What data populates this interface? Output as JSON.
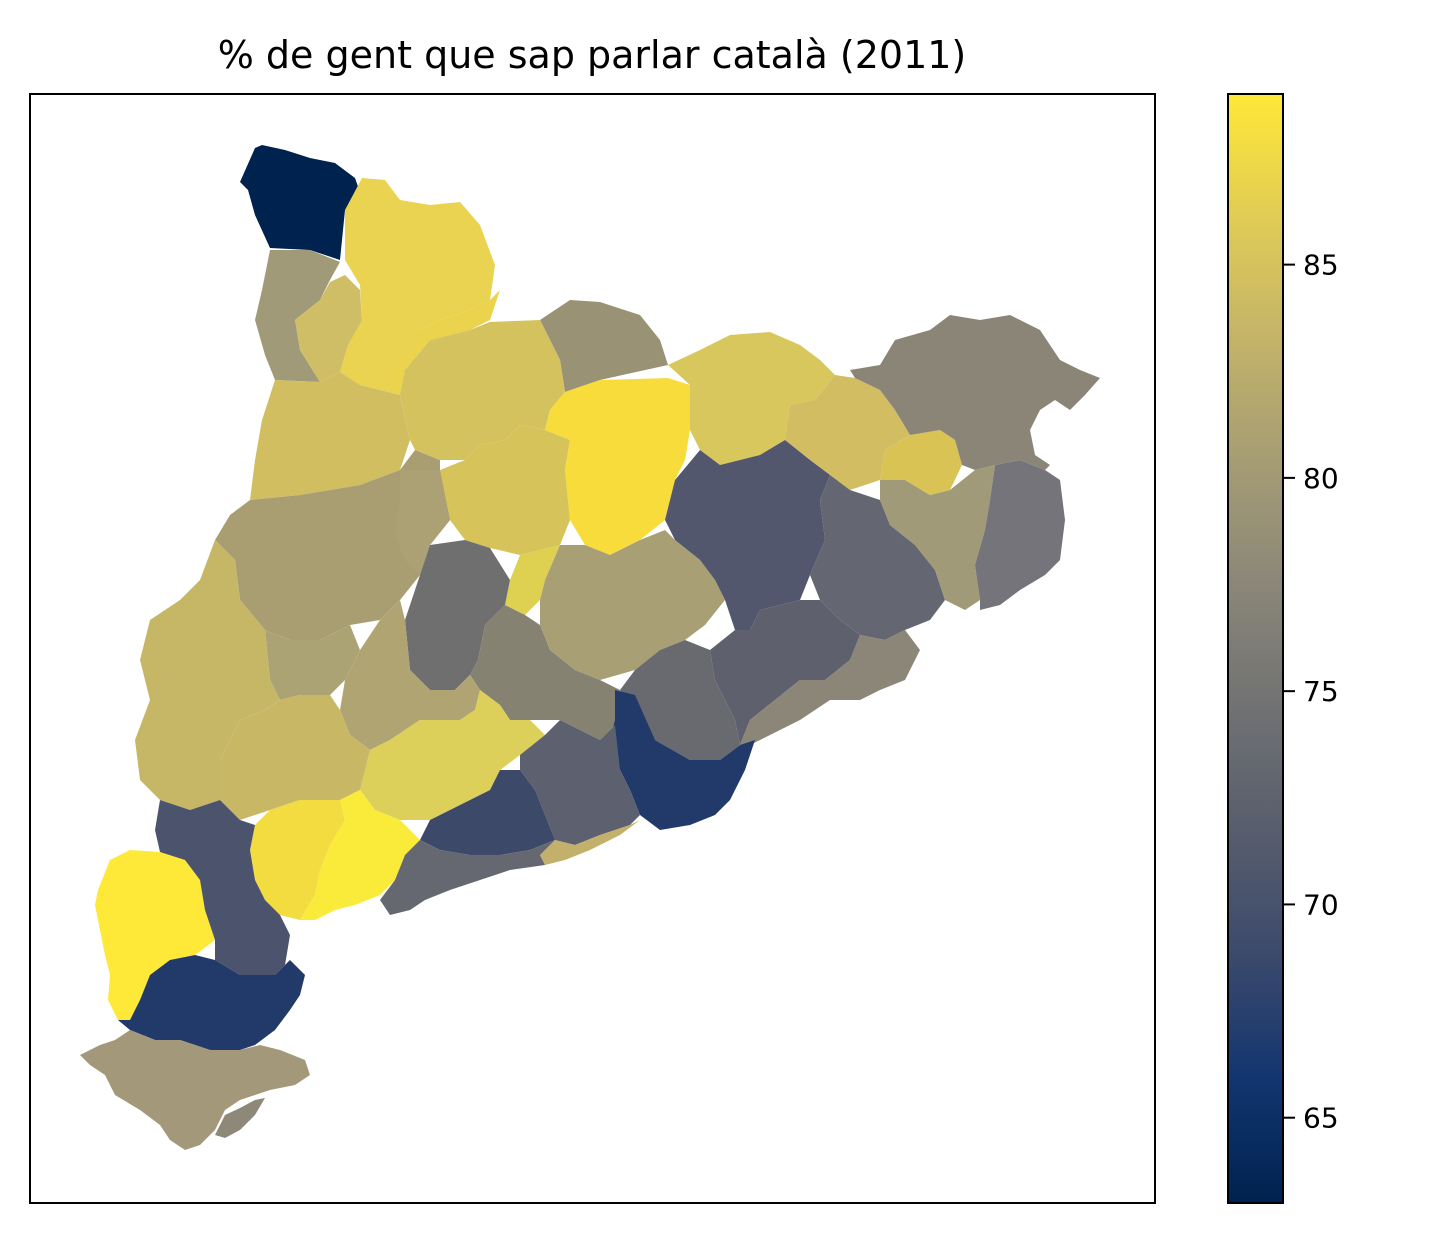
{
  "title": "% de gent que sap parlar català (2011)",
  "colorbar": {
    "colormap": "cividis",
    "min": 63,
    "max": 89,
    "ticks": [
      65,
      70,
      75,
      80,
      85
    ],
    "tick_labels": [
      "65",
      "70",
      "75",
      "80",
      "85"
    ],
    "stops": [
      "#00224e",
      "#123570",
      "#3b496c",
      "#575d6d",
      "#707173",
      "#8a8678",
      "#a59c74",
      "#c3b369",
      "#e1cc55",
      "#fee838"
    ]
  },
  "map": {
    "region_fill_colors": [
      "#00224e",
      "#e9d350",
      "#a09a78",
      "#cfbe65",
      "#ebd34d",
      "#d1be61",
      "#9a9274",
      "#d4c25f",
      "#d6c35a",
      "#ded050",
      "#f7dc3c",
      "#d8c75d",
      "#d2bd63",
      "#a99e72",
      "#aba174",
      "#a8a074",
      "#6f6f70",
      "#868272",
      "#aba374",
      "#686a6f",
      "#52576d",
      "#646772",
      "#a09a78",
      "#74747a",
      "#d8c354",
      "#c6b766",
      "#5e606d",
      "#8b8677",
      "#b0a572",
      "#dccf5a",
      "#c8b866",
      "#223a6a",
      "#5d606f",
      "#3d4968",
      "#f3dc40",
      "#fee838",
      "#4c536c",
      "#faeb3a",
      "#c3b16b",
      "#666871",
      "#223a6a",
      "#a3997a",
      "#8e8878",
      "#8b8577",
      "#68696f"
    ]
  }
}
